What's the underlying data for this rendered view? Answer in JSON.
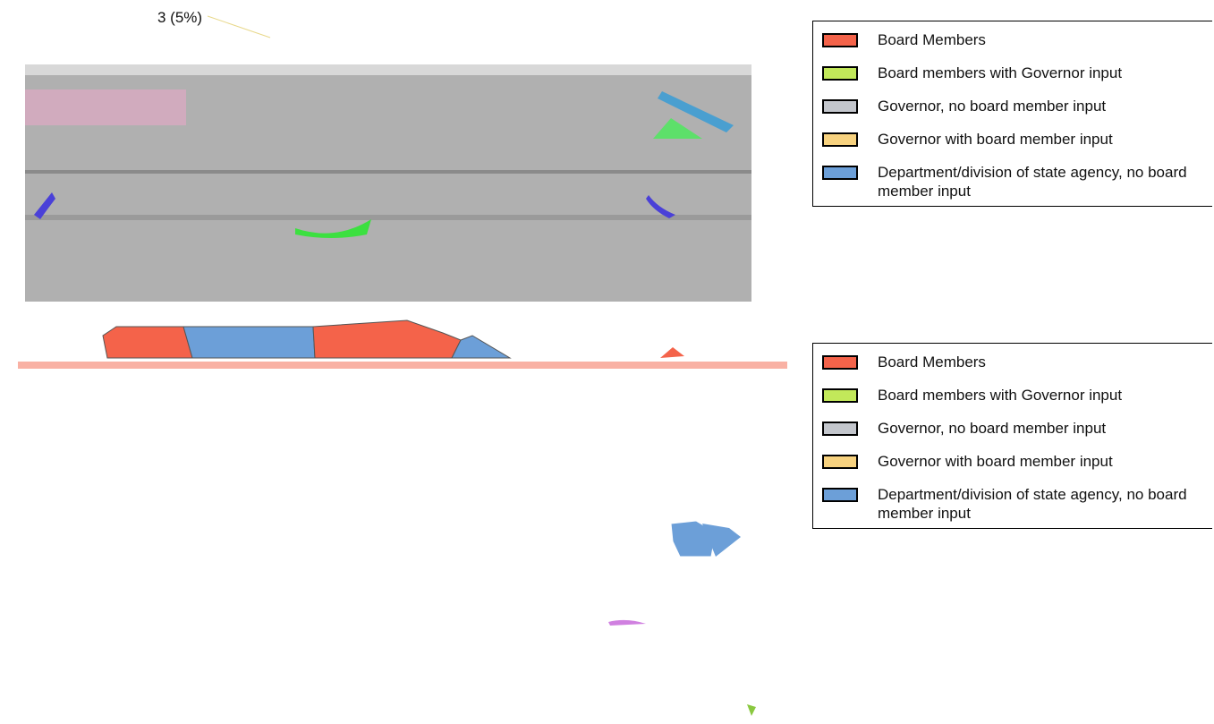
{
  "pie_panel": {
    "labels": [
      "3 (5%)"
    ]
  },
  "legends": [
    {
      "items": [
        {
          "label": "Board Members",
          "color": "#f4634a"
        },
        {
          "label": "Board members with Governor input",
          "color": "#c2e85a"
        },
        {
          "label": "Governor, no board member input",
          "color": "#c3c6cc"
        },
        {
          "label": "Governor with board member input",
          "color": "#f7d27f"
        },
        {
          "label": "Department/division of state agency, no board member input",
          "color": "#6c9fd8"
        }
      ]
    },
    {
      "items": [
        {
          "label": "Board Members",
          "color": "#f4634a"
        },
        {
          "label": "Board members with Governor input",
          "color": "#c2e85a"
        },
        {
          "label": "Governor, no board member input",
          "color": "#c3c6cc"
        },
        {
          "label": "Governor with board member input",
          "color": "#f7d27f"
        },
        {
          "label": "Department/division of state agency, no board member input",
          "color": "#6c9fd8"
        }
      ]
    }
  ]
}
